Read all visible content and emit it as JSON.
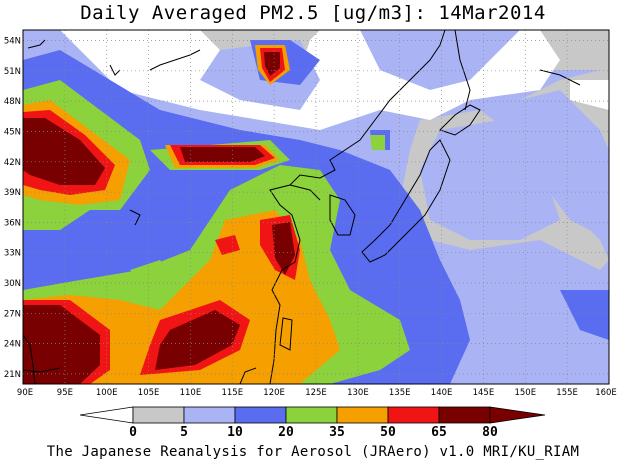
{
  "title": "Daily Averaged PM2.5 [ug/m3]: 14Mar2014",
  "credit": "The Japanese Reanalysis for Aerosol (JRAero) v1.0 MRI/KU_RIAM",
  "map": {
    "lon_range": [
      90,
      160
    ],
    "lat_range": [
      20,
      55
    ],
    "lon_ticks": [
      "90E",
      "95E",
      "100E",
      "105E",
      "110E",
      "115E",
      "120E",
      "125E",
      "130E",
      "135E",
      "140E",
      "145E",
      "150E",
      "155E",
      "160E"
    ],
    "lat_ticks": [
      "54N",
      "51N",
      "48N",
      "45N",
      "42N",
      "39N",
      "36N",
      "33N",
      "30N",
      "27N",
      "24N",
      "21N"
    ]
  },
  "colorbar": {
    "levels": [
      "0",
      "5",
      "10",
      "20",
      "35",
      "50",
      "65",
      "80"
    ],
    "colors": [
      "#ffffff",
      "#c8c8c8",
      "#aab4f5",
      "#5a6cf0",
      "#8cd23c",
      "#f5a000",
      "#f01414",
      "#780000"
    ]
  }
}
